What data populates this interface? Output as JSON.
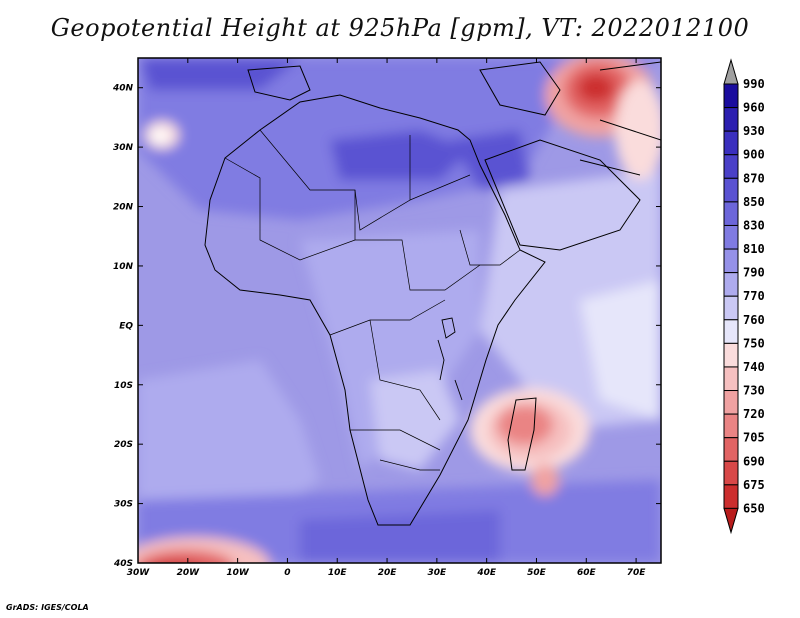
{
  "title": "Geopotential Height at 925hPa [gpm], VT: 2022012100",
  "credit": "GrADS: IGES/COLA",
  "lat_labels": [
    "40N",
    "30N",
    "20N",
    "10N",
    "EQ",
    "10S",
    "20S",
    "30S",
    "40S"
  ],
  "lon_labels": [
    "30W",
    "20W",
    "10W",
    "0",
    "10E",
    "20E",
    "30E",
    "40E",
    "50E",
    "60E",
    "70E"
  ],
  "colorbar": {
    "levels": [
      "990",
      "960",
      "930",
      "900",
      "870",
      "850",
      "830",
      "810",
      "790",
      "770",
      "760",
      "750",
      "740",
      "730",
      "720",
      "705",
      "690",
      "675",
      "650"
    ],
    "colors": [
      "#1a0c9e",
      "#2c1fb0",
      "#3a2fbe",
      "#4a40c8",
      "#5a52d2",
      "#6c66da",
      "#807be2",
      "#9591e8",
      "#aeabee",
      "#cac8f4",
      "#e6e6fa",
      "#fadcdc",
      "#f6c0c0",
      "#f0a2a2",
      "#ea8484",
      "#e26464",
      "#d84848",
      "#cc2e2e",
      "#b81c1c"
    ],
    "above_color": "#a0a0a0"
  },
  "map_extent": {
    "lon_min": -30,
    "lon_max": 75,
    "lat_min": -40,
    "lat_max": 45
  }
}
